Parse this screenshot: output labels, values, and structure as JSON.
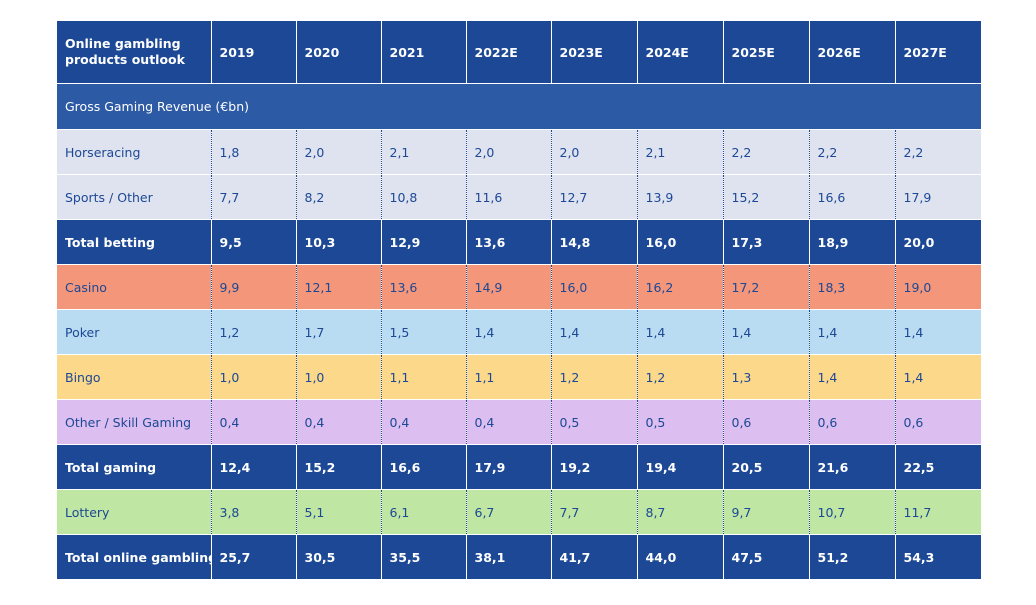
{
  "chart_data": {
    "type": "table",
    "title": "Online gambling products outlook",
    "section_label": "Gross Gaming Revenue (€bn)",
    "columns": [
      "2019",
      "2020",
      "2021",
      "2022E",
      "2023E",
      "2024E",
      "2025E",
      "2026E",
      "2027E"
    ],
    "rows": [
      {
        "label": "Horseracing",
        "style": "normal",
        "bg": "#dfe3ef",
        "fg": "#1c4895",
        "values": [
          "1,8",
          "2,0",
          "2,1",
          "2,0",
          "2,0",
          "2,1",
          "2,2",
          "2,2",
          "2,2"
        ]
      },
      {
        "label": "Sports / Other",
        "style": "normal",
        "bg": "#dfe3ef",
        "fg": "#1c4895",
        "values": [
          "7,7",
          "8,2",
          "10,8",
          "11,6",
          "12,7",
          "13,9",
          "15,2",
          "16,6",
          "17,9"
        ]
      },
      {
        "label": "Total betting",
        "style": "total",
        "bg": "#1c4895",
        "fg": "#ffffff",
        "values": [
          "9,5",
          "10,3",
          "12,9",
          "13,6",
          "14,8",
          "16,0",
          "17,3",
          "18,9",
          "20,0"
        ]
      },
      {
        "label": "Casino",
        "style": "normal",
        "bg": "#f4967a",
        "fg": "#1c4895",
        "values": [
          "9,9",
          "12,1",
          "13,6",
          "14,9",
          "16,0",
          "16,2",
          "17,2",
          "18,3",
          "19,0"
        ]
      },
      {
        "label": "Poker",
        "style": "normal",
        "bg": "#b9dcf2",
        "fg": "#1c4895",
        "values": [
          "1,2",
          "1,7",
          "1,5",
          "1,4",
          "1,4",
          "1,4",
          "1,4",
          "1,4",
          "1,4"
        ]
      },
      {
        "label": "Bingo",
        "style": "normal",
        "bg": "#fcd88a",
        "fg": "#1c4895",
        "values": [
          "1,0",
          "1,0",
          "1,1",
          "1,1",
          "1,2",
          "1,2",
          "1,3",
          "1,4",
          "1,4"
        ]
      },
      {
        "label": "Other / Skill Gaming",
        "style": "normal",
        "bg": "#dcbff0",
        "fg": "#1c4895",
        "values": [
          "0,4",
          "0,4",
          "0,4",
          "0,4",
          "0,5",
          "0,5",
          "0,6",
          "0,6",
          "0,6"
        ]
      },
      {
        "label": "Total gaming",
        "style": "total",
        "bg": "#1c4895",
        "fg": "#ffffff",
        "values": [
          "12,4",
          "15,2",
          "16,6",
          "17,9",
          "19,2",
          "19,4",
          "20,5",
          "21,6",
          "22,5"
        ]
      },
      {
        "label": "Lottery",
        "style": "normal",
        "bg": "#bfe6a2",
        "fg": "#1c4895",
        "values": [
          "3,8",
          "5,1",
          "6,1",
          "6,7",
          "7,7",
          "8,7",
          "9,7",
          "10,7",
          "11,7"
        ]
      },
      {
        "label": "Total online gambling",
        "style": "total",
        "bg": "#1c4895",
        "fg": "#ffffff",
        "values": [
          "25,7",
          "30,5",
          "35,5",
          "38,1",
          "41,7",
          "44,0",
          "47,5",
          "51,2",
          "54,3"
        ]
      }
    ]
  }
}
